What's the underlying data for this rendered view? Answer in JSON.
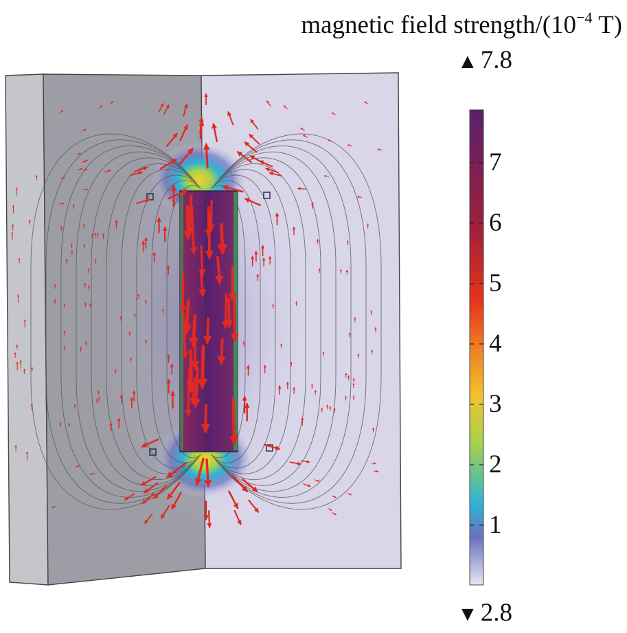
{
  "legend": {
    "title_main": "magnetic field strength/(10",
    "title_exp": "−4",
    "title_unit": " T)",
    "max_label": "7.8",
    "min_label": "2.8",
    "max_symbol": "▲",
    "min_symbol": "▼",
    "ticks": [
      "1",
      "2",
      "3",
      "4",
      "5",
      "6",
      "7"
    ],
    "colors": [
      "#e6e4f1",
      "#4f62b4",
      "#28b8d8",
      "#a8d24a",
      "#f09a2a",
      "#e8321c",
      "#8a1f3b",
      "#5e1f6e"
    ]
  }
}
